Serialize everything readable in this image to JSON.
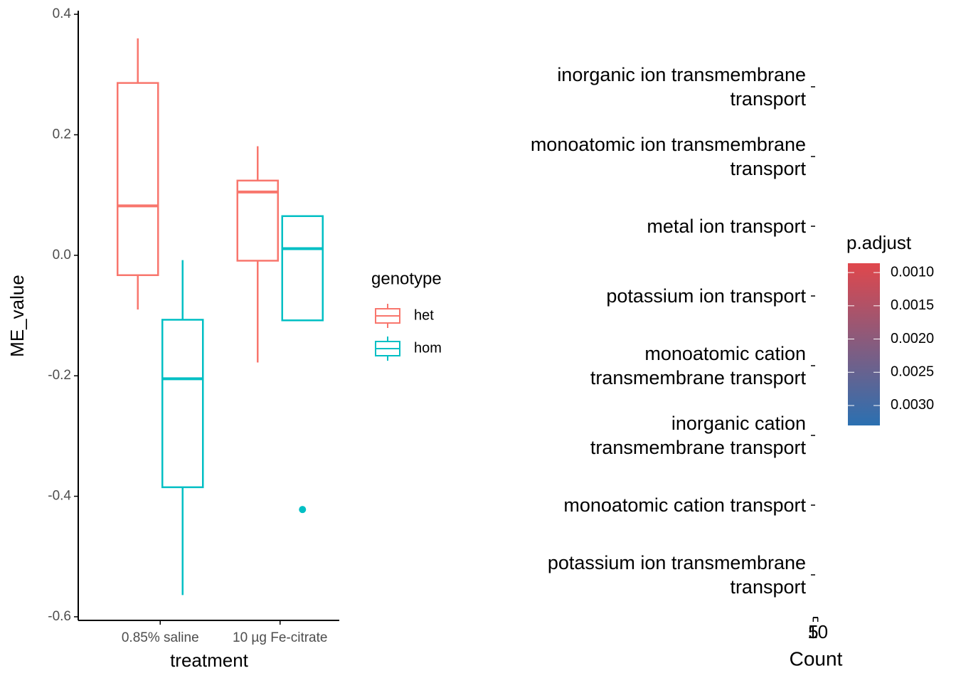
{
  "chart_data": [
    {
      "type": "boxplot",
      "x_label": "treatment",
      "y_label": "ME_value",
      "categories": [
        "0.85% saline",
        "10 µg Fe-citrate"
      ],
      "legend_title": "genotype",
      "series": [
        {
          "name": "het",
          "color": "#F8766D",
          "boxes": [
            {
              "min": -0.09,
              "q1": -0.033,
              "median": 0.082,
              "q3": 0.286,
              "max": 0.36
            },
            {
              "min": -0.178,
              "q1": -0.009,
              "median": 0.105,
              "q3": 0.124,
              "max": 0.181
            }
          ]
        },
        {
          "name": "hom",
          "color": "#00BFC4",
          "boxes": [
            {
              "min": -0.564,
              "q1": -0.385,
              "median": -0.205,
              "q3": -0.107,
              "max": -0.008
            },
            {
              "min": -0.108,
              "q1": -0.108,
              "median": 0.011,
              "q3": 0.065,
              "max": 0.065,
              "outliers": [
                -0.422
              ]
            }
          ]
        }
      ],
      "ylim": [
        -0.606,
        0.406
      ],
      "yticks": [
        -0.6,
        -0.4,
        -0.2,
        {
          "value": 0,
          "label": "0.0"
        },
        0.2,
        0.4
      ]
    },
    {
      "type": "dot",
      "x_label": "Count",
      "categories": [
        "inorganic ion transmembrane\ntransport",
        "monoatomic ion transmembrane\ntransport",
        "metal ion transport",
        "potassium ion transport",
        "monoatomic cation\ntransmembrane transport",
        "inorganic cation\ntransmembrane transport",
        "monoatomic cation transport",
        "potassium ion transmembrane\ntransport"
      ],
      "xlim": [
        4.75,
        10.25
      ],
      "xticks": [
        10,
        5
      ],
      "color_legend": {
        "title": "p.adjust",
        "low_color": "#E0474C",
        "high_color": "#2B70B1",
        "lim": [
          0.00086,
          0.0033
        ],
        "ticks": [
          {
            "value": 0.001,
            "label": "0.0010"
          },
          {
            "value": 0.0015,
            "label": "0.0015"
          },
          {
            "value": 0.002,
            "label": "0.0020"
          },
          {
            "value": 0.0025,
            "label": "0.0025"
          },
          {
            "value": 0.003,
            "label": "0.0030"
          }
        ]
      }
    }
  ]
}
